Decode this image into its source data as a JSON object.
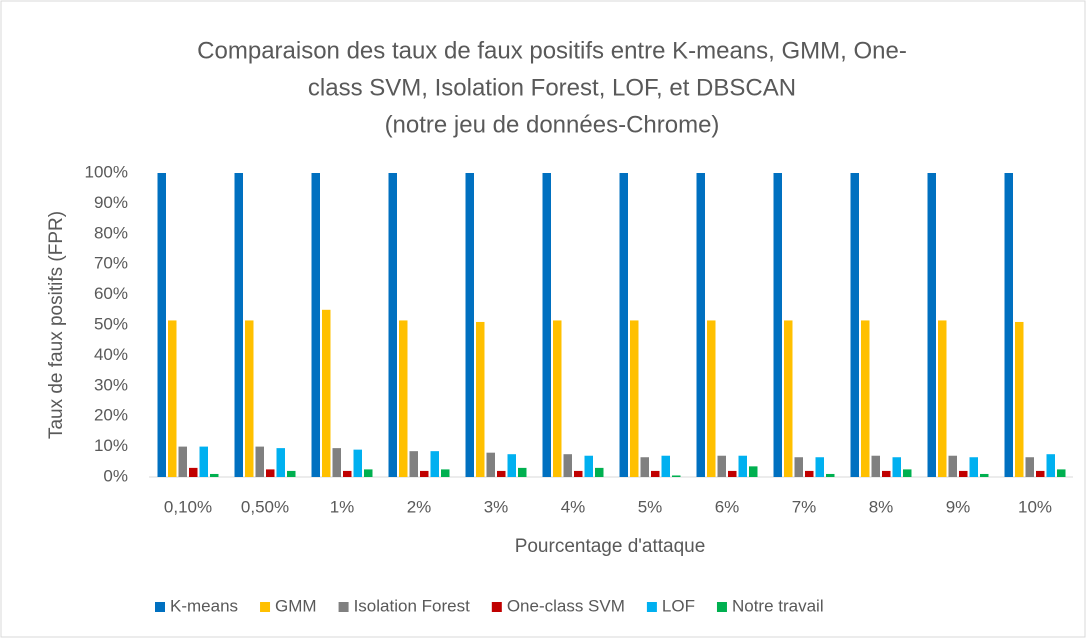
{
  "chart_data": {
    "type": "bar",
    "title": [
      "Comparaison des taux de faux positifs entre K-means, GMM, One-",
      "class SVM, Isolation Forest, LOF, et DBSCAN",
      "(notre jeu de données-Chrome)"
    ],
    "x_label": "Pourcentage d'attaque",
    "y_label": "Taux de faux positifs (FPR)",
    "categories": [
      "0,10%",
      "0,50%",
      "1%",
      "2%",
      "3%",
      "4%",
      "5%",
      "6%",
      "7%",
      "8%",
      "9%",
      "10%"
    ],
    "series": [
      {
        "name": "K-means",
        "color": "#0070c0",
        "values": [
          100,
          100,
          100,
          100,
          100,
          100,
          100,
          100,
          100,
          100,
          100,
          100
        ]
      },
      {
        "name": "GMM",
        "color": "#ffc000",
        "values": [
          51.5,
          51.5,
          55,
          51.5,
          51,
          51.5,
          51.5,
          51.5,
          51.5,
          51.5,
          51.5,
          51
        ]
      },
      {
        "name": "Isolation Forest",
        "color": "#808080",
        "values": [
          10,
          10,
          9.5,
          8.5,
          8,
          7.5,
          6.5,
          7,
          6.5,
          7,
          7,
          6.5
        ]
      },
      {
        "name": "One-class SVM",
        "color": "#c00000",
        "values": [
          3,
          2.5,
          2,
          2,
          2,
          2,
          2,
          2,
          2,
          2,
          2,
          2
        ]
      },
      {
        "name": "LOF",
        "color": "#00b0f0",
        "values": [
          10,
          9.5,
          9,
          8.5,
          7.5,
          7,
          7,
          7,
          6.5,
          6.5,
          6.5,
          7.5
        ]
      },
      {
        "name": "Notre travail",
        "color": "#00b050",
        "values": [
          1,
          2,
          2.5,
          2.5,
          3,
          3,
          0.5,
          3.5,
          1,
          2.5,
          1,
          2.5
        ]
      }
    ],
    "ylim": [
      0,
      100
    ],
    "yticks": [
      {
        "value": 0,
        "label": "0%"
      },
      {
        "value": 10,
        "label": "10%"
      },
      {
        "value": 20,
        "label": "20%"
      },
      {
        "value": 30,
        "label": "30%"
      },
      {
        "value": 40,
        "label": "40%"
      },
      {
        "value": 50,
        "label": "50%"
      },
      {
        "value": 60,
        "label": "60%"
      },
      {
        "value": 70,
        "label": "70%"
      },
      {
        "value": 80,
        "label": "80%"
      },
      {
        "value": 90,
        "label": "90%"
      },
      {
        "value": 100,
        "label": "100%"
      }
    ],
    "grid": false,
    "legend": "bottom"
  }
}
